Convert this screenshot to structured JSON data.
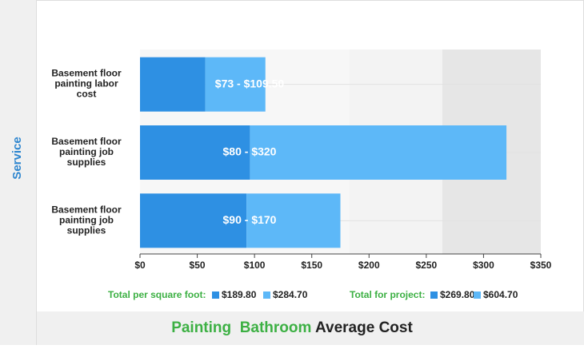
{
  "chart_data": {
    "type": "stacked_hbar",
    "title": {
      "highlight": "Painting  Bathroom",
      "rest": "Average Cost"
    },
    "y_label": "Service",
    "categories": [
      [
        "Basement floor",
        "painting labor",
        "cost"
      ],
      [
        "Basement floor",
        "painting job",
        "supplies"
      ],
      [
        "Basement floor",
        "painting job",
        "supplies"
      ]
    ],
    "series": [
      {
        "color": "#2e90e3",
        "values": [
          57,
          96,
          93
        ]
      },
      {
        "color": "#5db8f8",
        "values": [
          52.5,
          224,
          82
        ]
      }
    ],
    "annotations": [
      "$73 - $109.50",
      "$80 - $320",
      "$90 - $170"
    ],
    "xlim": [
      0,
      350
    ],
    "xticks": [
      {
        "value": 0,
        "label": "$0"
      },
      {
        "value": 50,
        "label": "$50"
      },
      {
        "value": 100,
        "label": "$100"
      },
      {
        "value": 150,
        "label": "$150"
      },
      {
        "value": 200,
        "label": "$200"
      },
      {
        "value": 250,
        "label": "$250"
      },
      {
        "value": 300,
        "label": "$300"
      },
      {
        "value": 350,
        "label": "$350"
      }
    ],
    "legend": [
      {
        "title": "Total per square foot:",
        "items": [
          {
            "label": "$189.80",
            "color": "#2e90e3"
          },
          {
            "label": "$284.70",
            "color": "#5db8f8"
          }
        ]
      },
      {
        "title": "Total for project:",
        "items": [
          {
            "label": "$269.80",
            "color": "#2e90e3"
          },
          {
            "label": "$604.70",
            "color": "#5db8f8"
          }
        ]
      }
    ]
  }
}
